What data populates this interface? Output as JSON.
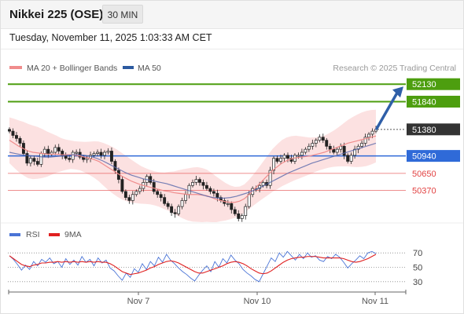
{
  "header": {
    "title": "Nikkei 225 (OSE)",
    "interval": "30 MIN",
    "timestamp": "Tuesday, November 11, 2025 1:03:33 AM CET"
  },
  "legend": {
    "items": [
      {
        "label": "MA 20 + Bollinger Bands",
        "color": "#f08c8c"
      },
      {
        "label": "MA 50",
        "color": "#2c5aa0"
      }
    ],
    "credit": "Research © 2025 Trading Central"
  },
  "rsi_legend": {
    "items": [
      {
        "label": "RSI",
        "color": "#4a74d6"
      },
      {
        "label": "9MA",
        "color": "#e02020"
      }
    ]
  },
  "chart_data": {
    "type": "candlestick",
    "x_labels": [
      "Nov 7",
      "Nov 10",
      "Nov 11"
    ],
    "price_range": [
      49750,
      52250
    ],
    "last_price": 51380,
    "levels": [
      {
        "value": 52130,
        "label": "52130",
        "kind": "resistance",
        "color": "#4d9e0f"
      },
      {
        "value": 51840,
        "label": "51840",
        "kind": "resistance",
        "color": "#4d9e0f"
      },
      {
        "value": 51380,
        "label": "51380",
        "kind": "last",
        "color": "#333333"
      },
      {
        "value": 50940,
        "label": "50940",
        "kind": "pivot",
        "color": "#2f6ad8"
      },
      {
        "value": 50650,
        "label": "50650",
        "kind": "support",
        "color": "#e24343"
      },
      {
        "value": 50370,
        "label": "50370",
        "kind": "support",
        "color": "#e24343"
      }
    ],
    "candles": [
      51350,
      51280,
      51230,
      51150,
      50980,
      50820,
      50900,
      50850,
      50800,
      50980,
      51050,
      50970,
      51000,
      51080,
      51020,
      50950,
      50900,
      50880,
      51000,
      51000,
      50920,
      50880,
      50900,
      50950,
      50980,
      51000,
      50950,
      51000,
      51020,
      50850,
      50700,
      50550,
      50350,
      50250,
      50200,
      50300,
      50350,
      50400,
      50500,
      50600,
      50500,
      50350,
      50300,
      50250,
      50150,
      50100,
      50000,
      49980,
      50100,
      50200,
      50300,
      50450,
      50500,
      50550,
      50500,
      50450,
      50400,
      50350,
      50320,
      50250,
      50200,
      50150,
      50150,
      50050,
      49980,
      49900,
      49950,
      50100,
      50300,
      50400,
      50400,
      50450,
      50500,
      50450,
      50700,
      50900,
      50850,
      50900,
      50950,
      50900,
      50850,
      50950,
      50950,
      51000,
      51050,
      51100,
      51150,
      51200,
      51250,
      51200,
      51100,
      51050,
      51000,
      51050,
      51100,
      50950,
      50850,
      50950,
      51050,
      51100,
      51150,
      51250,
      51300,
      51350,
      51380
    ],
    "ma20": [
      51200,
      51150,
      51100,
      51060,
      51020,
      51000,
      50990,
      50980,
      50970,
      50970,
      50970,
      50960,
      50960,
      50960,
      50950,
      50940,
      50920,
      50900,
      50880,
      50850,
      50800,
      50750,
      50700,
      50650,
      50600,
      50560,
      50520,
      50490,
      50460,
      50440,
      50420,
      50400,
      50380,
      50360,
      50350,
      50330,
      50320,
      50310,
      50300,
      50300,
      50300,
      50290,
      50280,
      50250,
      50220,
      50200,
      50180,
      50170,
      50170,
      50190,
      50230,
      50300,
      50380,
      50460,
      50540,
      50620,
      50700,
      50760,
      50820,
      50860,
      50890,
      50910,
      50920,
      50930,
      50940,
      50960,
      50980,
      51000,
      51030,
      51060,
      51090,
      51120,
      51150,
      51170,
      51190,
      51210,
      51230,
      51250,
      51270
    ],
    "ma50": [
      51000,
      50980,
      50960,
      50950,
      50940,
      50930,
      50920,
      50920,
      50930,
      50940,
      50950,
      50960,
      50960,
      50950,
      50930,
      50900,
      50860,
      50810,
      50760,
      50710,
      50660,
      50620,
      50590,
      50560,
      50540,
      50520,
      50500,
      50480,
      50450,
      50420,
      50390,
      50360,
      50330,
      50300,
      50270,
      50250,
      50240,
      50240,
      50250,
      50270,
      50300,
      50330,
      50370,
      50410,
      50460,
      50510,
      50560,
      50610,
      50660,
      50700,
      50740,
      50780,
      50820,
      50850,
      50880,
      50910,
      50940,
      50970,
      51000,
      51030,
      51060,
      51090,
      51120,
      51150
    ],
    "rsi_ticks": [
      70,
      50,
      30
    ],
    "rsi": [
      66,
      61,
      54,
      46,
      53,
      47,
      58,
      52,
      61,
      57,
      63,
      55,
      58,
      50,
      62,
      54,
      60,
      53,
      65,
      57,
      61,
      52,
      63,
      56,
      60,
      49,
      45,
      38,
      32,
      42,
      36,
      48,
      43,
      55,
      47,
      58,
      52,
      64,
      57,
      68,
      60,
      55,
      49,
      44,
      40,
      35,
      31,
      39,
      46,
      52,
      44,
      58,
      50,
      62,
      56,
      67,
      60,
      55,
      47,
      42,
      38,
      33,
      30,
      41,
      52,
      63,
      58,
      70,
      64,
      72,
      66,
      60,
      68,
      62,
      70,
      64,
      66,
      60,
      58,
      65,
      62,
      68,
      64,
      57,
      49,
      55,
      60,
      66,
      62,
      70,
      72,
      69
    ],
    "rsi_ma": [
      66,
      62,
      58,
      54,
      52,
      51,
      53,
      54,
      56,
      56,
      57,
      57,
      58,
      57,
      58,
      57,
      58,
      57,
      58,
      57,
      58,
      57,
      58,
      57,
      57,
      55,
      52,
      48,
      44,
      42,
      40,
      41,
      42,
      44,
      46,
      49,
      51,
      54,
      56,
      58,
      59,
      58,
      56,
      53,
      50,
      47,
      44,
      42,
      42,
      44,
      46,
      48,
      50,
      52,
      55,
      57,
      58,
      57,
      55,
      52,
      48,
      45,
      42,
      41,
      42,
      45,
      49,
      53,
      57,
      60,
      62,
      63,
      64,
      64,
      65,
      65,
      65,
      64,
      63,
      63,
      63,
      63,
      63,
      62,
      60,
      58,
      57,
      58,
      60,
      62,
      65,
      68
    ]
  }
}
